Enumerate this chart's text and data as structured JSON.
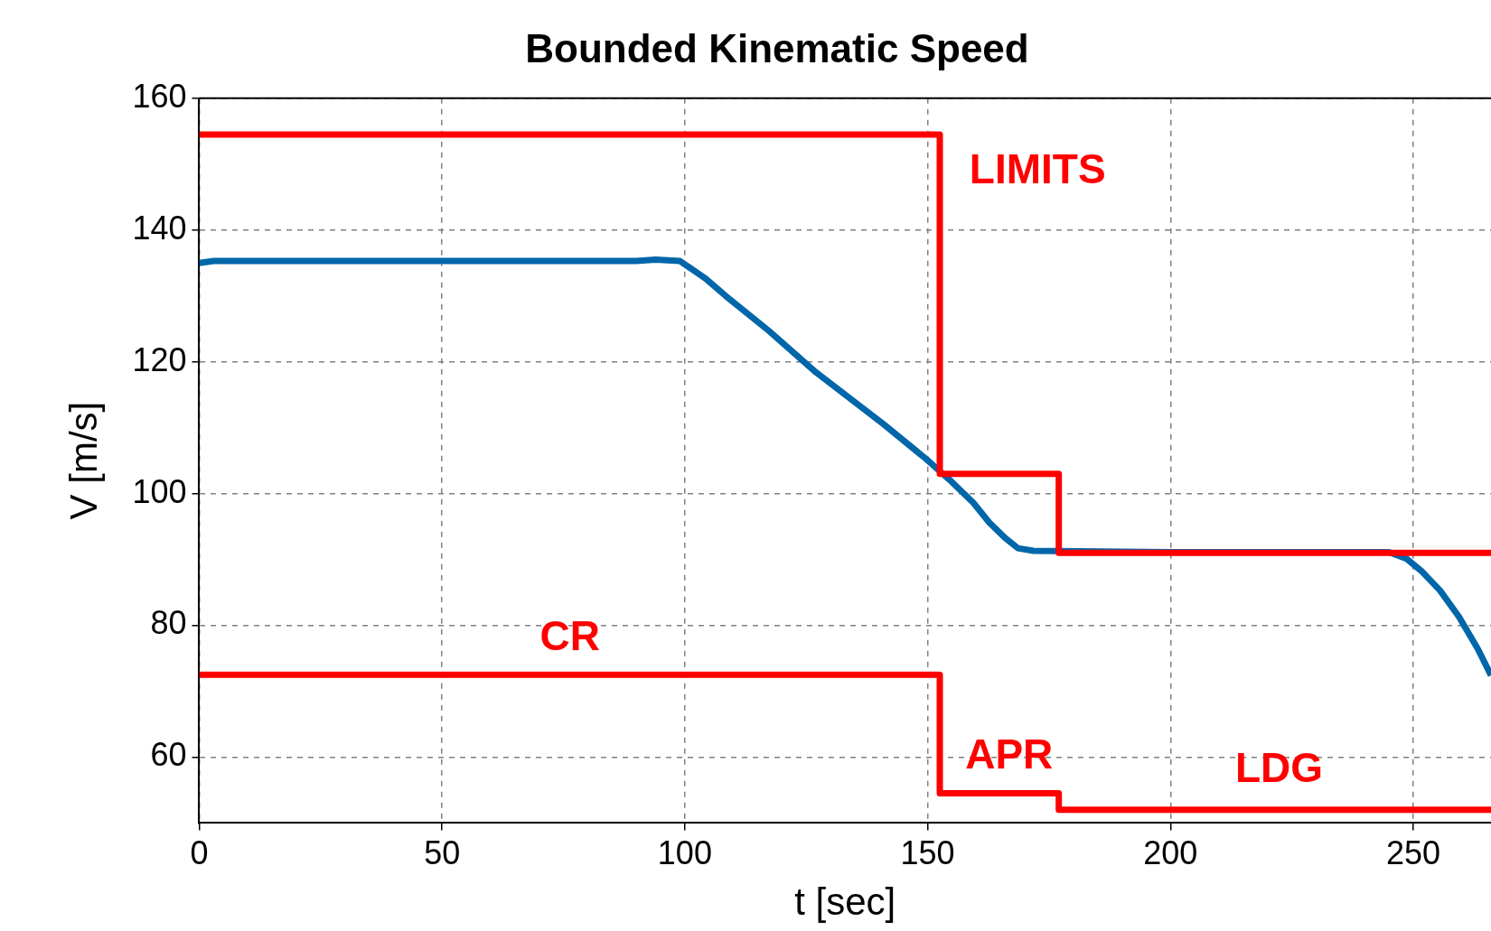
{
  "chart_data": {
    "type": "line",
    "title": "Bounded Kinematic Speed",
    "xlabel": "t [sec]",
    "ylabel": "V [m/s]",
    "xlim": [
      0,
      266
    ],
    "xticks": [
      0,
      50,
      100,
      150,
      200,
      250
    ],
    "ylim": [
      50,
      160
    ],
    "yticks": [
      60,
      80,
      100,
      120,
      140,
      160
    ],
    "grid": true,
    "legend": false,
    "series": [
      {
        "type": "step",
        "color": "#ff0000",
        "x": [
          0,
          152.5,
          177,
          266
        ],
        "values": [
          154.5,
          103,
          91,
          91
        ]
      },
      {
        "type": "step",
        "color": "#ff0000",
        "x": [
          0,
          152.5,
          177,
          266
        ],
        "values": [
          72.5,
          54.5,
          52,
          52
        ]
      },
      {
        "color": "#0066aa",
        "x": [
          0,
          3,
          45,
          90,
          94,
          99,
          104.3,
          108.4,
          117.3,
          127,
          140.8,
          149.6,
          154.5,
          159.4,
          162.7,
          165.9,
          168.6,
          171.8,
          200,
          245,
          248.6,
          251.6,
          255.5,
          259.4,
          263.3,
          266
        ],
        "values": [
          135,
          135.3,
          135.3,
          135.3,
          135.5,
          135.3,
          132.6,
          130,
          124.7,
          118.4,
          110.6,
          105.3,
          102.1,
          98.6,
          95.6,
          93.3,
          91.7,
          91.3,
          91.1,
          91.1,
          90.1,
          88.3,
          85.3,
          81.3,
          76.4,
          72.4
        ]
      }
    ],
    "annotations": [
      "LIMITS",
      "CR",
      "APR",
      "LDG"
    ]
  }
}
